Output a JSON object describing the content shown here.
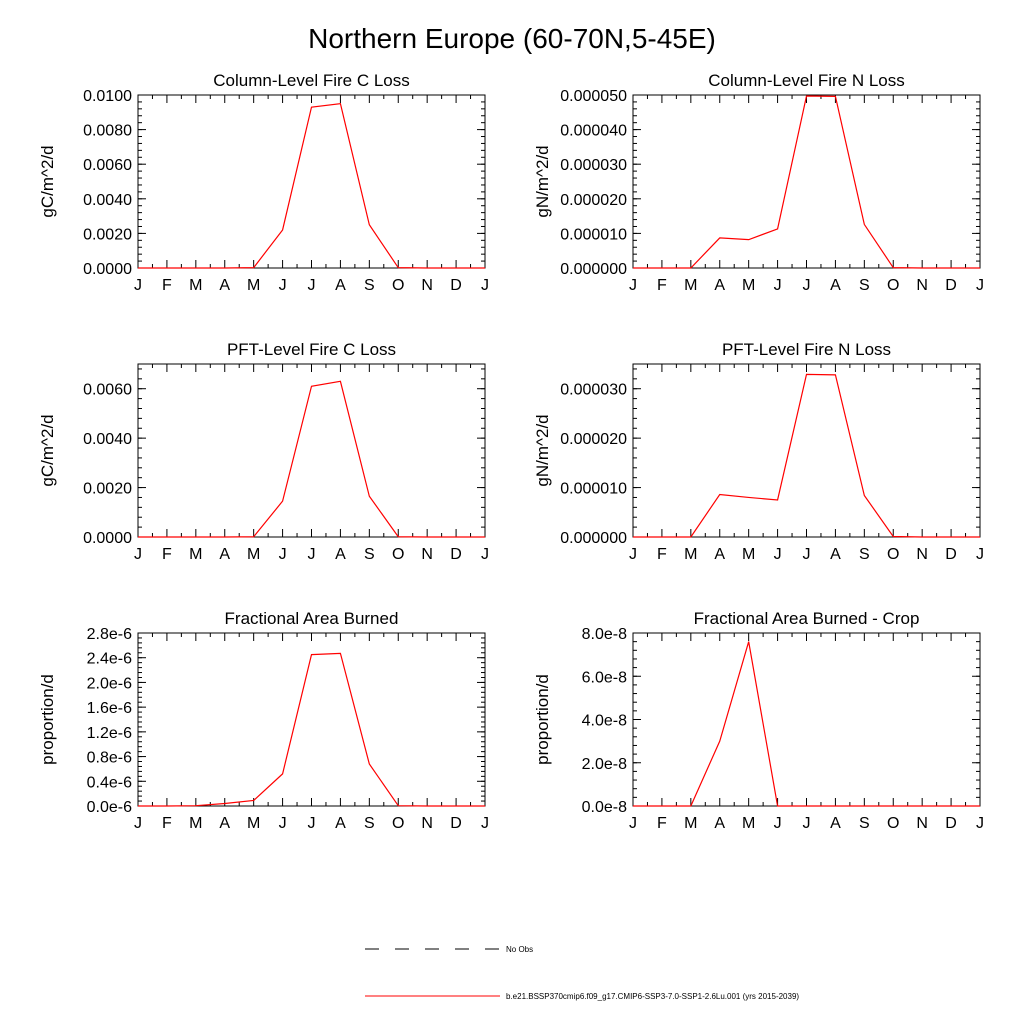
{
  "figure": {
    "title": "Northern Europe (60-70N,5-45E)"
  },
  "legend": [
    {
      "label": "No Obs",
      "style": "dashed",
      "color": "#000000"
    },
    {
      "label": "b.e21.BSSP370cmip6.f09_g17.CMIP6-SSP3-7.0-SSP1-2.6Lu.001 (yrs 2015-2039)",
      "style": "solid",
      "color": "#ff0000"
    }
  ],
  "colors": {
    "series": "#ff0000",
    "axis": "#000000"
  },
  "chart_data": [
    {
      "type": "line",
      "title": "Column-Level Fire C Loss",
      "ylabel": "gC/m^2/d",
      "xlabel": "",
      "categories": [
        "J",
        "F",
        "M",
        "A",
        "M",
        "J",
        "J",
        "A",
        "S",
        "O",
        "N",
        "D",
        "J"
      ],
      "ylim": [
        0,
        0.01
      ],
      "yticks": [
        "0.0000",
        "0.0020",
        "0.0040",
        "0.0060",
        "0.0080",
        "0.0100"
      ],
      "series": [
        {
          "values": [
            0,
            0,
            0,
            0,
            2e-05,
            0.0022,
            0.0093,
            0.0095,
            0.0025,
            2e-05,
            0,
            0,
            0
          ]
        }
      ]
    },
    {
      "type": "line",
      "title": "Column-Level Fire N Loss",
      "ylabel": "gN/m^2/d",
      "xlabel": "",
      "categories": [
        "J",
        "F",
        "M",
        "A",
        "M",
        "J",
        "J",
        "A",
        "S",
        "O",
        "N",
        "D",
        "J"
      ],
      "ylim": [
        0,
        5e-05
      ],
      "yticks": [
        "0.000000",
        "0.000010",
        "0.000020",
        "0.000030",
        "0.000040",
        "0.000050"
      ],
      "series": [
        {
          "values": [
            0,
            0,
            0,
            8.7e-06,
            8.2e-06,
            1.13e-05,
            4.97e-05,
            4.96e-05,
            1.26e-05,
            1e-07,
            0,
            0,
            0
          ]
        }
      ]
    },
    {
      "type": "line",
      "title": "PFT-Level Fire C Loss",
      "ylabel": "gC/m^2/d",
      "xlabel": "",
      "categories": [
        "J",
        "F",
        "M",
        "A",
        "M",
        "J",
        "J",
        "A",
        "S",
        "O",
        "N",
        "D",
        "J"
      ],
      "ylim": [
        0,
        0.007
      ],
      "yticks": [
        "0.0000",
        "0.0020",
        "0.0040",
        "0.0060"
      ],
      "series": [
        {
          "values": [
            0,
            0,
            0,
            0,
            1e-05,
            0.00145,
            0.0061,
            0.0063,
            0.00165,
            1e-05,
            0,
            0,
            0
          ]
        }
      ]
    },
    {
      "type": "line",
      "title": "PFT-Level Fire N Loss",
      "ylabel": "gN/m^2/d",
      "xlabel": "",
      "categories": [
        "J",
        "F",
        "M",
        "A",
        "M",
        "J",
        "J",
        "A",
        "S",
        "O",
        "N",
        "D",
        "J"
      ],
      "ylim": [
        0,
        3.5e-05
      ],
      "yticks": [
        "0.000000",
        "0.000010",
        "0.000020",
        "0.000030"
      ],
      "series": [
        {
          "values": [
            0,
            0,
            0,
            8.6e-06,
            8e-06,
            7.5e-06,
            3.29e-05,
            3.28e-05,
            8.4e-06,
            1e-07,
            0,
            0,
            0
          ]
        }
      ]
    },
    {
      "type": "line",
      "title": "Fractional Area Burned",
      "ylabel": "proportion/d",
      "xlabel": "",
      "categories": [
        "J",
        "F",
        "M",
        "A",
        "M",
        "J",
        "J",
        "A",
        "S",
        "O",
        "N",
        "D",
        "J"
      ],
      "ylim": [
        0,
        2.8e-06
      ],
      "yticks": [
        "0.0e-6",
        "0.4e-6",
        "0.8e-6",
        "1.2e-6",
        "1.6e-6",
        "2.0e-6",
        "2.4e-6",
        "2.8e-6"
      ],
      "series": [
        {
          "values": [
            0,
            0,
            5e-09,
            4e-08,
            9e-08,
            5.2e-07,
            2.45e-06,
            2.47e-06,
            6.8e-07,
            5e-09,
            0,
            0,
            0
          ]
        }
      ]
    },
    {
      "type": "line",
      "title": "Fractional Area Burned - Crop",
      "ylabel": "proportion/d",
      "xlabel": "",
      "categories": [
        "J",
        "F",
        "M",
        "A",
        "M",
        "J",
        "J",
        "A",
        "S",
        "O",
        "N",
        "D",
        "J"
      ],
      "ylim": [
        0,
        8e-08
      ],
      "yticks": [
        "0.0e-8",
        "2.0e-8",
        "4.0e-8",
        "6.0e-8",
        "8.0e-8"
      ],
      "series": [
        {
          "values": [
            0,
            0,
            0,
            3e-08,
            7.6e-08,
            0,
            0,
            0,
            0,
            0,
            0,
            0,
            0
          ]
        }
      ]
    }
  ]
}
